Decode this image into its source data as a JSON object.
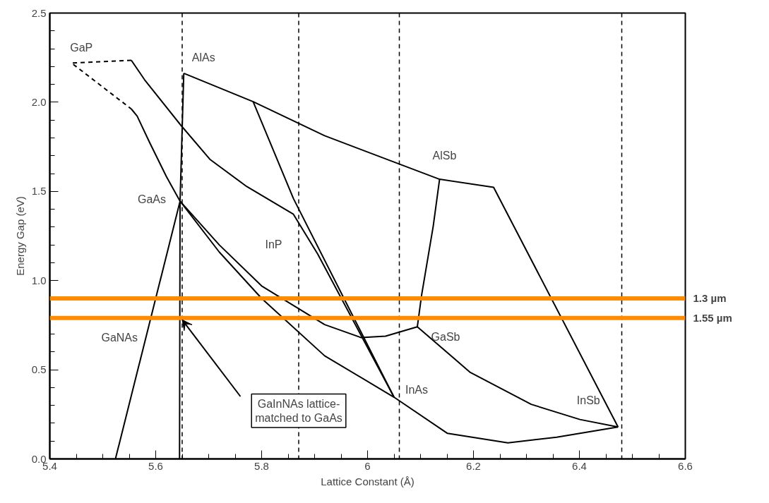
{
  "chart_data": {
    "type": "line",
    "xlabel": "Lattice Constant (Å)",
    "ylabel": "Energy Gap (eV)",
    "xlim": [
      5.4,
      6.6
    ],
    "xticks": [
      5.4,
      5.6,
      5.8,
      6.0,
      6.2,
      6.4,
      6.6
    ],
    "ylim": [
      0,
      2.5
    ],
    "yticks": [
      {
        "value": 0,
        "label": "0.0"
      },
      0.5,
      {
        "value": 1,
        "label": "1.0"
      },
      1.5,
      {
        "value": 2,
        "label": "2.0"
      },
      2.5
    ],
    "grid": false,
    "marker": "none",
    "series": [
      {
        "color": "#000000",
        "line_style": "dashed",
        "x": [
          5.554,
          5.441,
          5.554
        ],
        "values": [
          2.235,
          2.22,
          1.962
        ]
      },
      {
        "color": "#000000",
        "line_style": "solid",
        "x": [
          5.554,
          5.579,
          5.648,
          5.703,
          5.772,
          5.86,
          5.906,
          6.05
        ],
        "values": [
          2.235,
          2.126,
          1.869,
          1.678,
          1.527,
          1.372,
          1.148,
          0.346
        ]
      },
      {
        "color": "#000000",
        "line_style": "solid",
        "x": [
          5.554,
          5.565,
          5.589,
          5.62,
          5.646,
          5.72,
          5.8,
          5.919,
          5.988,
          6.034,
          6.094
        ],
        "values": [
          1.962,
          1.922,
          1.771,
          1.584,
          1.445,
          1.2,
          0.97,
          0.753,
          0.68,
          0.688,
          0.741
        ]
      },
      {
        "color": "#000000",
        "line_style": "solid",
        "x": [
          5.653,
          5.646,
          5.645
        ],
        "values": [
          2.162,
          1.445,
          0.0
        ]
      },
      {
        "color": "#000000",
        "line_style": "solid",
        "x": [
          5.646,
          5.524
        ],
        "values": [
          1.445,
          0.0
        ]
      },
      {
        "color": "#000000",
        "line_style": "solid",
        "x": [
          5.653,
          5.784,
          5.919,
          6.136,
          6.238,
          6.473
        ],
        "values": [
          2.162,
          2.003,
          1.812,
          1.568,
          1.523,
          0.179
        ]
      },
      {
        "color": "#000000",
        "line_style": "solid",
        "x": [
          5.784,
          5.86,
          6.05
        ],
        "values": [
          2.003,
          1.46,
          0.346
        ]
      },
      {
        "color": "#000000",
        "line_style": "solid",
        "x": [
          5.646,
          5.72,
          5.8,
          5.919,
          6.05,
          6.151,
          6.265,
          6.357,
          6.473
        ],
        "values": [
          1.445,
          1.16,
          0.9,
          0.578,
          0.346,
          0.143,
          0.09,
          0.122,
          0.179
        ]
      },
      {
        "color": "#000000",
        "line_style": "solid",
        "x": [
          6.136,
          6.124,
          6.102,
          6.094,
          6.194,
          6.309,
          6.401,
          6.473
        ],
        "values": [
          1.568,
          1.305,
          0.917,
          0.741,
          0.485,
          0.306,
          0.221,
          0.179
        ]
      }
    ],
    "ref_lines": [
      {
        "axis": "x",
        "value": 5.65,
        "color": "#000000",
        "line_style": "dashed",
        "label": null
      },
      {
        "axis": "x",
        "value": 5.87,
        "color": "#000000",
        "line_style": "dashed",
        "label": null
      },
      {
        "axis": "x",
        "value": 6.06,
        "color": "#000000",
        "line_style": "dashed",
        "label": null
      },
      {
        "axis": "x",
        "value": 6.48,
        "color": "#000000",
        "line_style": "dashed",
        "label": null
      },
      {
        "axis": "y",
        "value": 0.9,
        "color": "#ff8c00",
        "line_style": "solid",
        "label": "1.3 µm"
      },
      {
        "axis": "y",
        "value": 0.79,
        "color": "#ff8c00",
        "line_style": "solid",
        "label": "1.55 µm"
      }
    ],
    "annotations": [
      {
        "text": "GaP",
        "x": 5.441,
        "y": 2.22
      },
      {
        "text": "AlAs",
        "x": 5.653,
        "y": 2.162
      },
      {
        "text": "GaAs",
        "x": 5.646,
        "y": 1.445
      },
      {
        "text": "InP",
        "x": 5.86,
        "y": 1.372
      },
      {
        "text": "AlSb",
        "x": 6.136,
        "y": 1.568
      },
      {
        "text": "GaSb",
        "x": 6.094,
        "y": 0.741
      },
      {
        "text": "InAs",
        "x": 6.05,
        "y": 0.346
      },
      {
        "text": "InSb",
        "x": 6.473,
        "y": 0.179
      },
      {
        "text": "GaNAs",
        "x": 5.585,
        "y": 0.72
      },
      {
        "text": "GaInNAs lattice-\nmatched to GaAs",
        "x": 5.65,
        "y": 0.78
      }
    ]
  }
}
